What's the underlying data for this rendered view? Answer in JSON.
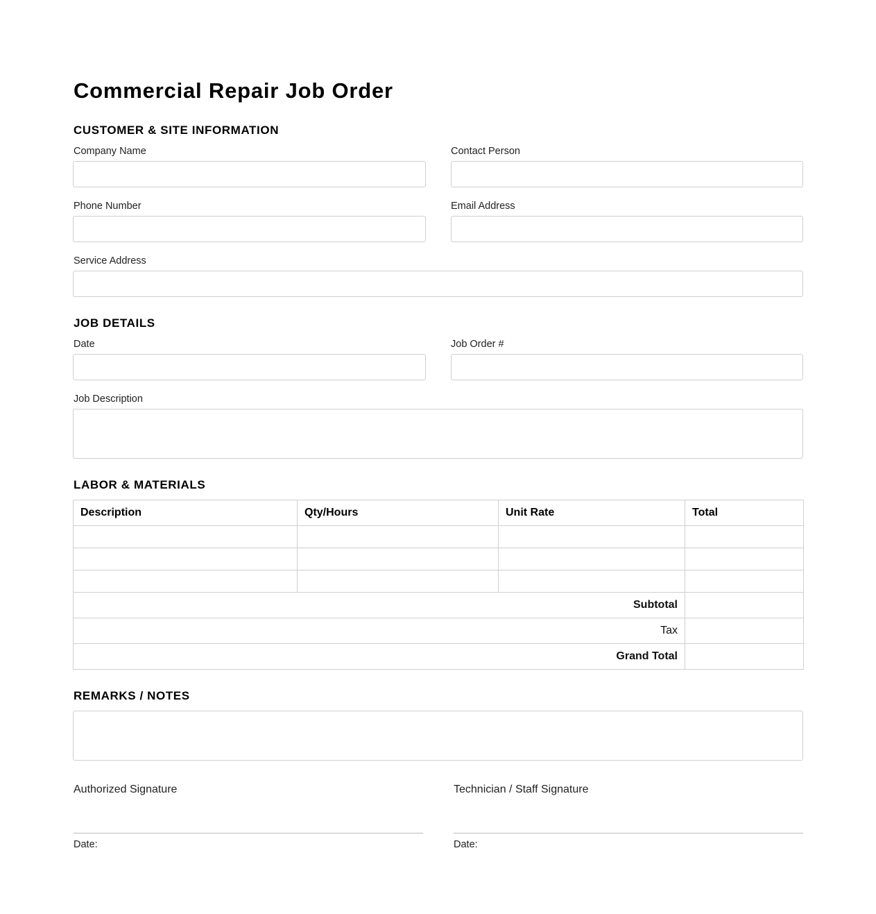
{
  "title": "Commercial Repair Job Order",
  "customer": {
    "heading": "CUSTOMER & SITE INFORMATION",
    "company_name": {
      "label": "Company Name",
      "value": ""
    },
    "contact_person": {
      "label": "Contact Person",
      "value": ""
    },
    "phone_number": {
      "label": "Phone Number",
      "value": ""
    },
    "email_address": {
      "label": "Email Address",
      "value": ""
    },
    "service_address": {
      "label": "Service Address",
      "value": ""
    }
  },
  "job": {
    "heading": "JOB DETAILS",
    "date": {
      "label": "Date",
      "value": ""
    },
    "job_order_no": {
      "label": "Job Order #",
      "value": ""
    },
    "description": {
      "label": "Job Description",
      "value": ""
    }
  },
  "labor": {
    "heading": "LABOR & MATERIALS",
    "columns": [
      "Description",
      "Qty/Hours",
      "Unit Rate",
      "Total"
    ],
    "rows": [
      [
        "",
        "",
        "",
        ""
      ],
      [
        "",
        "",
        "",
        ""
      ],
      [
        "",
        "",
        "",
        ""
      ]
    ],
    "subtotal_label": "Subtotal",
    "tax_label": "Tax",
    "grand_total_label": "Grand Total"
  },
  "remarks": {
    "heading": "REMARKS / NOTES",
    "value": ""
  },
  "signatures": {
    "authorized": {
      "label": "Authorized Signature",
      "date_label": "Date:"
    },
    "technician": {
      "label": "Technician / Staff Signature",
      "date_label": "Date:"
    }
  }
}
